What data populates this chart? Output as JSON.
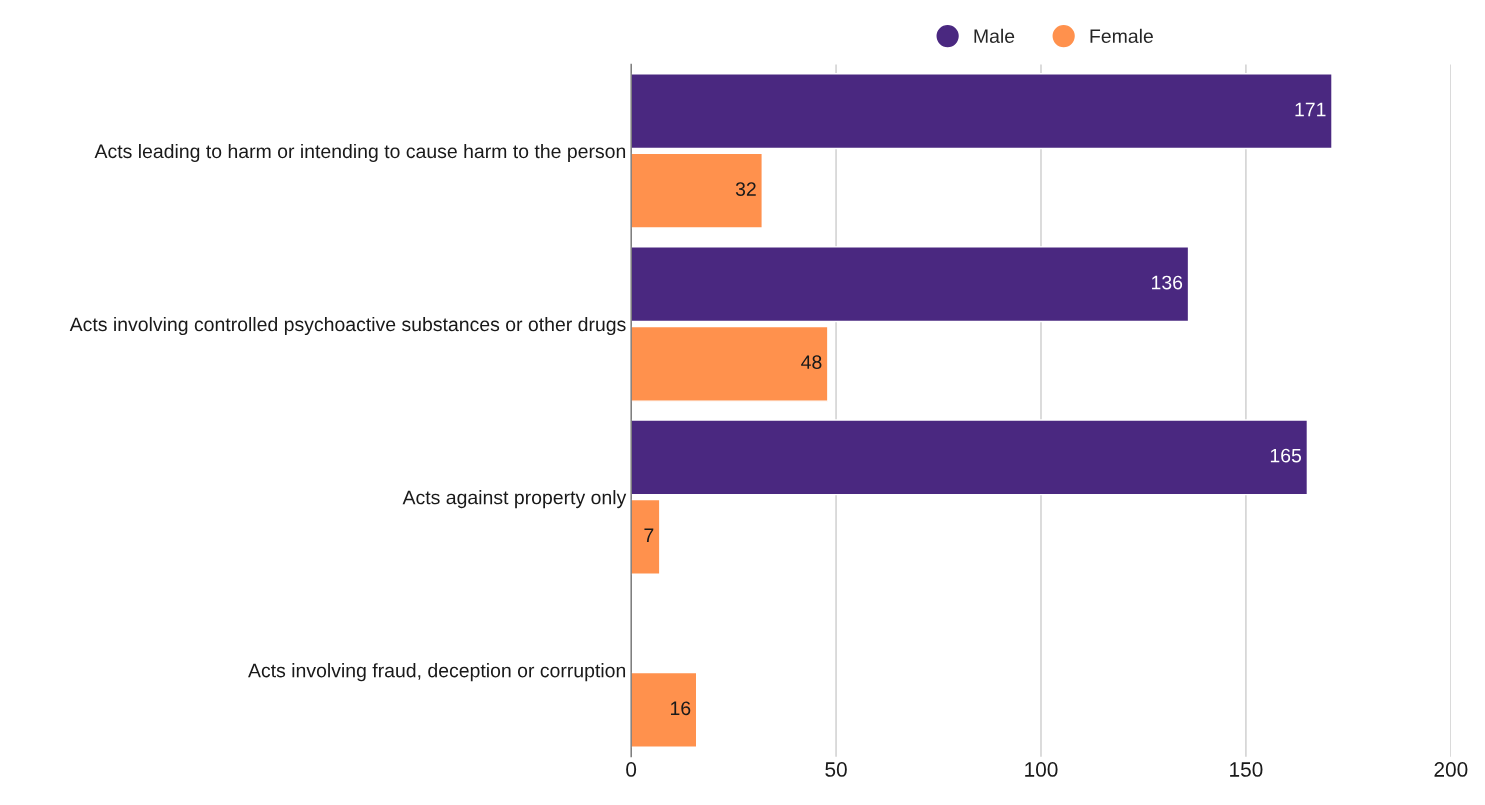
{
  "chart_data": {
    "type": "bar",
    "orientation": "horizontal",
    "categories": [
      "Acts leading to harm or intending to cause harm to the person",
      "Acts involving controlled psychoactive substances or other drugs",
      "Acts against property only",
      "Acts involving fraud, deception or corruption"
    ],
    "series": [
      {
        "name": "Male",
        "color": "#4a2880",
        "values": [
          171,
          136,
          165,
          null
        ]
      },
      {
        "name": "Female",
        "color": "#ff914d",
        "values": [
          32,
          48,
          7,
          16
        ]
      }
    ],
    "xlim": [
      0,
      200
    ],
    "xticks": [
      0,
      50,
      100,
      150,
      200
    ],
    "grid": "x",
    "legend": "top",
    "data_labels": true
  }
}
